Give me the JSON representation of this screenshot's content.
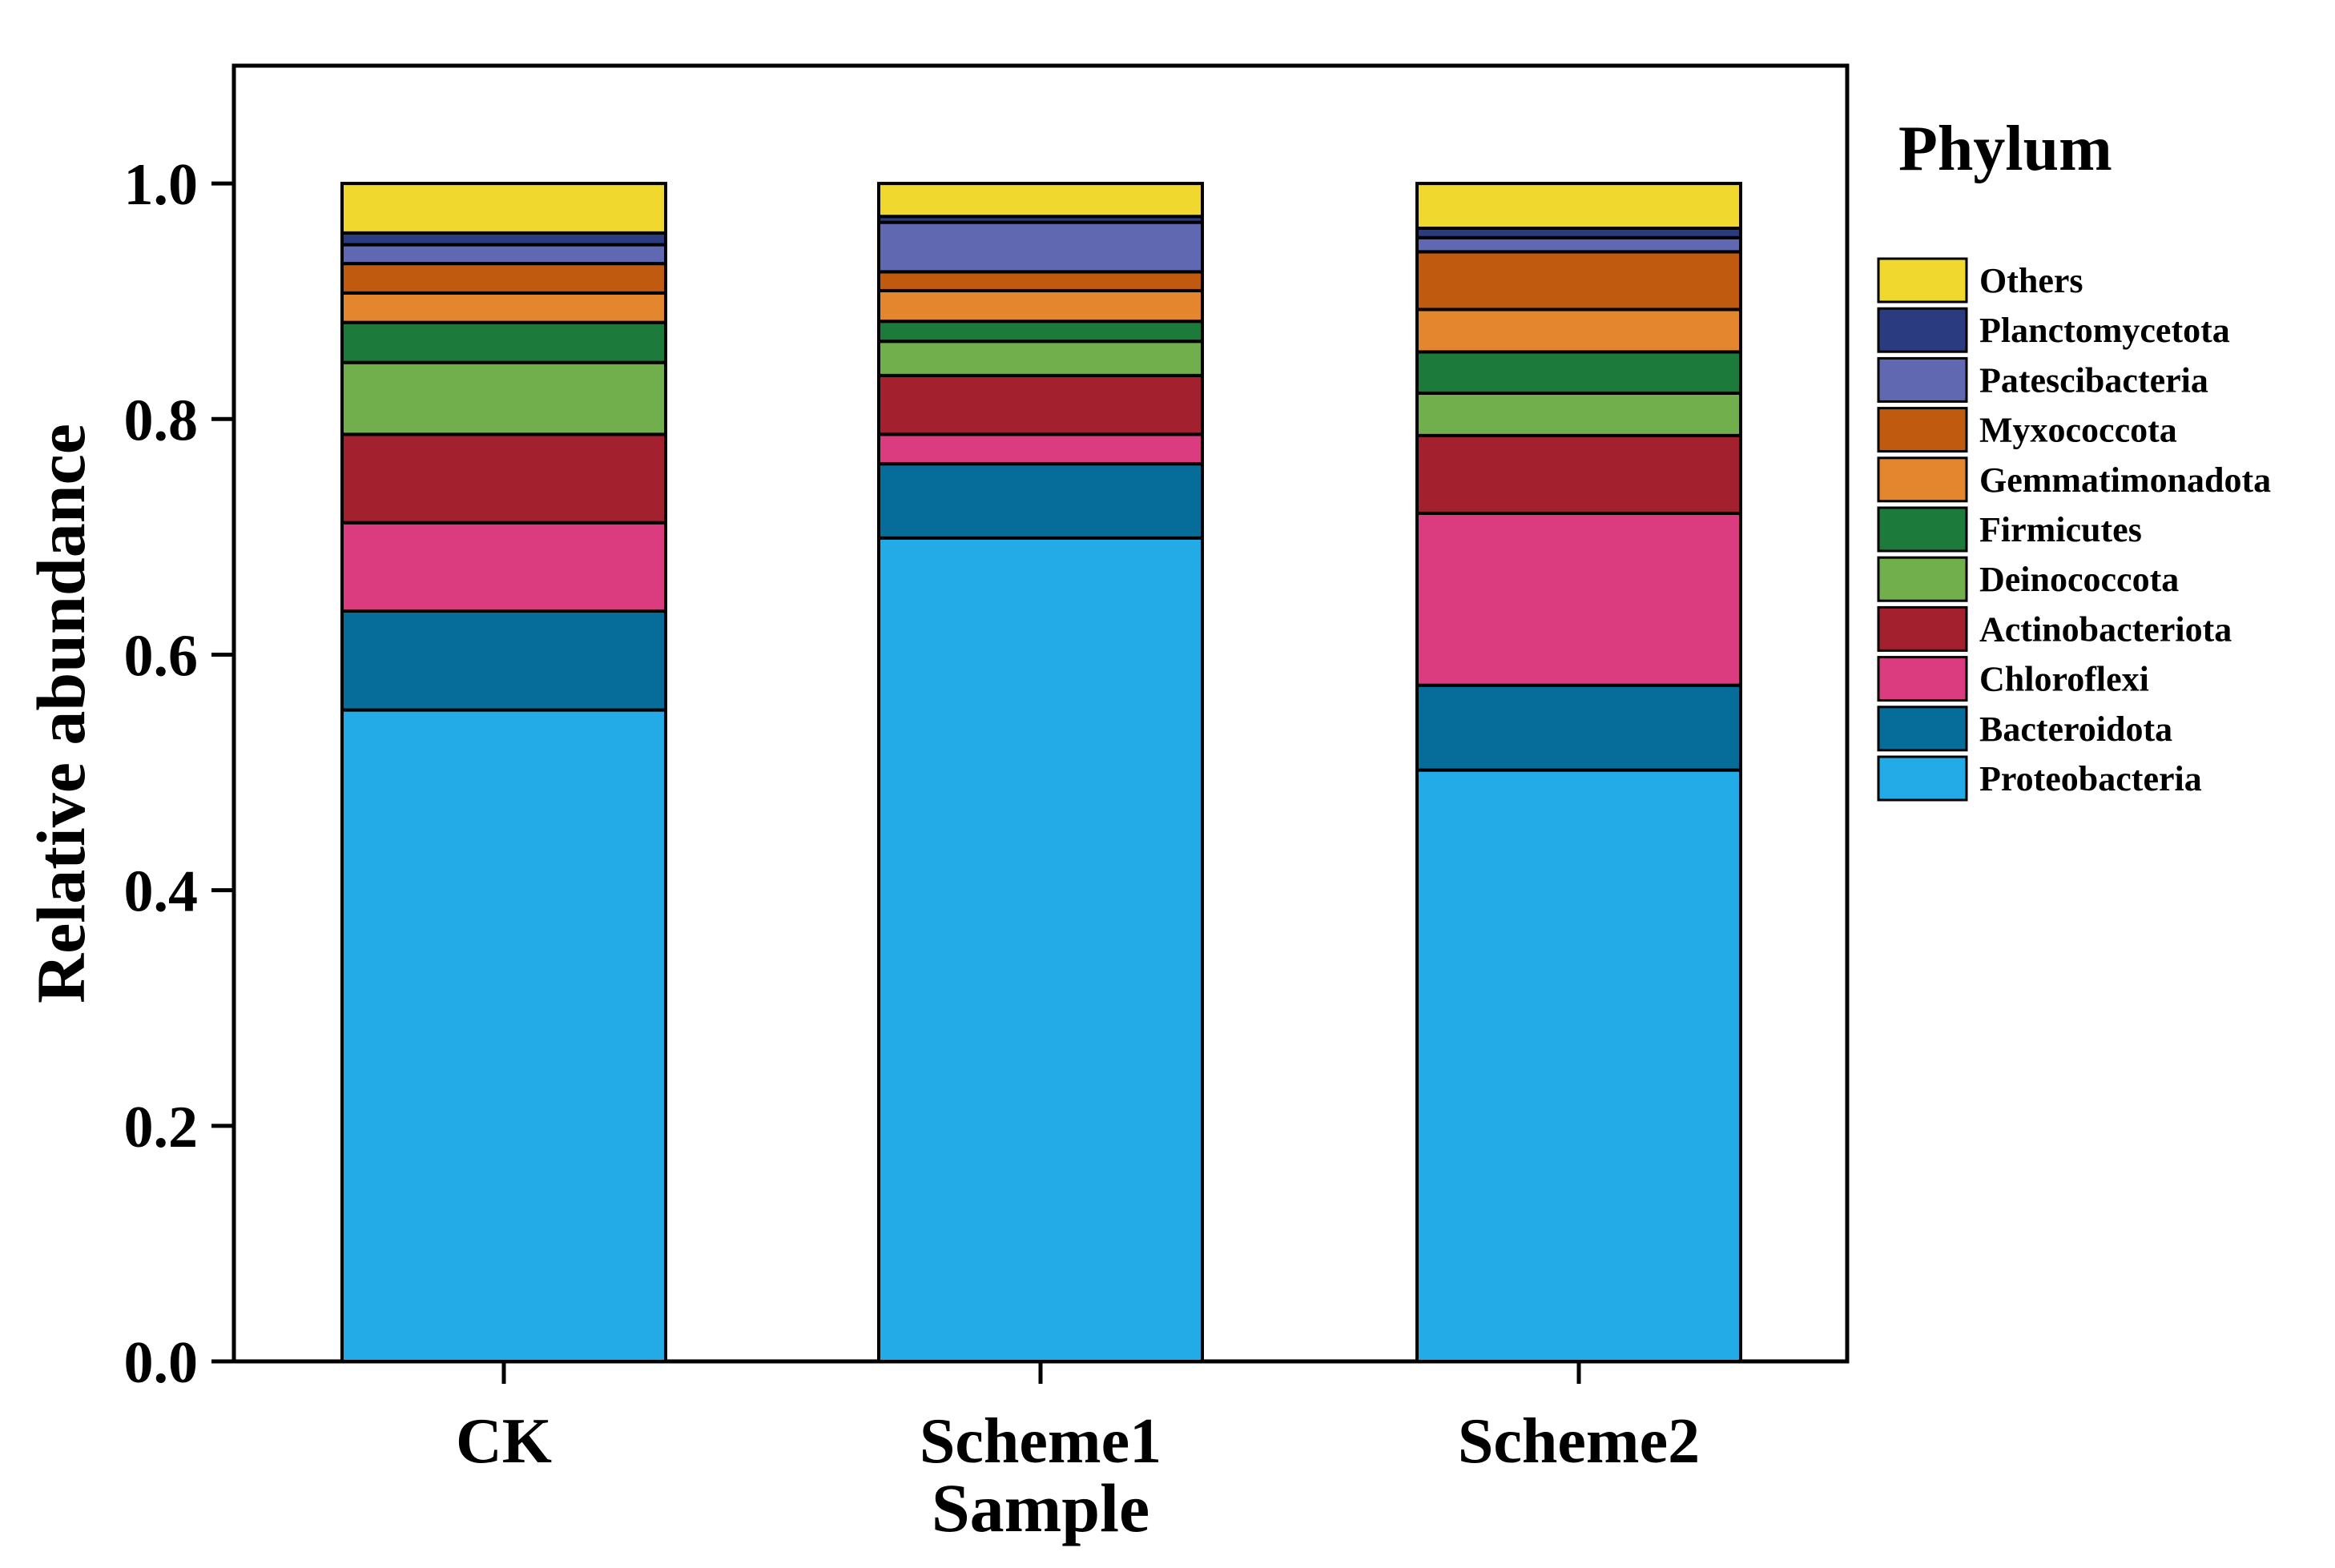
{
  "chart_data": {
    "type": "bar",
    "stacked": true,
    "xlabel": "Sample",
    "ylabel": "Relative abundance",
    "ylim": [
      0,
      1.1
    ],
    "yticks": [
      0.0,
      0.2,
      0.4,
      0.6,
      0.8,
      1.0
    ],
    "ytick_labels": [
      "0.0",
      "0.2",
      "0.4",
      "0.6",
      "0.8",
      "1.0"
    ],
    "categories": [
      "CK",
      "Scheme1",
      "Scheme2"
    ],
    "legend_title": "Phylum",
    "legend_position": "right",
    "series": [
      {
        "name": "Proteobacteria",
        "color": "#22ABE6",
        "values": [
          0.553,
          0.699,
          0.502
        ]
      },
      {
        "name": "Bacteroidota",
        "color": "#066D9A",
        "values": [
          0.084,
          0.063,
          0.072
        ]
      },
      {
        "name": "Chloroflexi",
        "color": "#DB3C7F",
        "values": [
          0.075,
          0.025,
          0.146
        ]
      },
      {
        "name": "Actinobacteriota",
        "color": "#A3212E",
        "values": [
          0.075,
          0.05,
          0.066
        ]
      },
      {
        "name": "Deinococcota",
        "color": "#70AF4C",
        "values": [
          0.061,
          0.029,
          0.036
        ]
      },
      {
        "name": "Firmicutes",
        "color": "#1C7A3A",
        "values": [
          0.034,
          0.017,
          0.035
        ]
      },
      {
        "name": "Gemmatimonadota",
        "color": "#E3862E",
        "values": [
          0.025,
          0.026,
          0.036
        ]
      },
      {
        "name": "Myxococcota",
        "color": "#BF5A0E",
        "values": [
          0.025,
          0.016,
          0.049
        ]
      },
      {
        "name": "Patescibacteria",
        "color": "#6068B1",
        "values": [
          0.016,
          0.042,
          0.012
        ]
      },
      {
        "name": "Planctomycetota",
        "color": "#2A3C7F",
        "values": [
          0.01,
          0.005,
          0.008
        ]
      },
      {
        "name": "Others",
        "color": "#F0D82E",
        "values": [
          0.042,
          0.028,
          0.038
        ]
      }
    ]
  }
}
